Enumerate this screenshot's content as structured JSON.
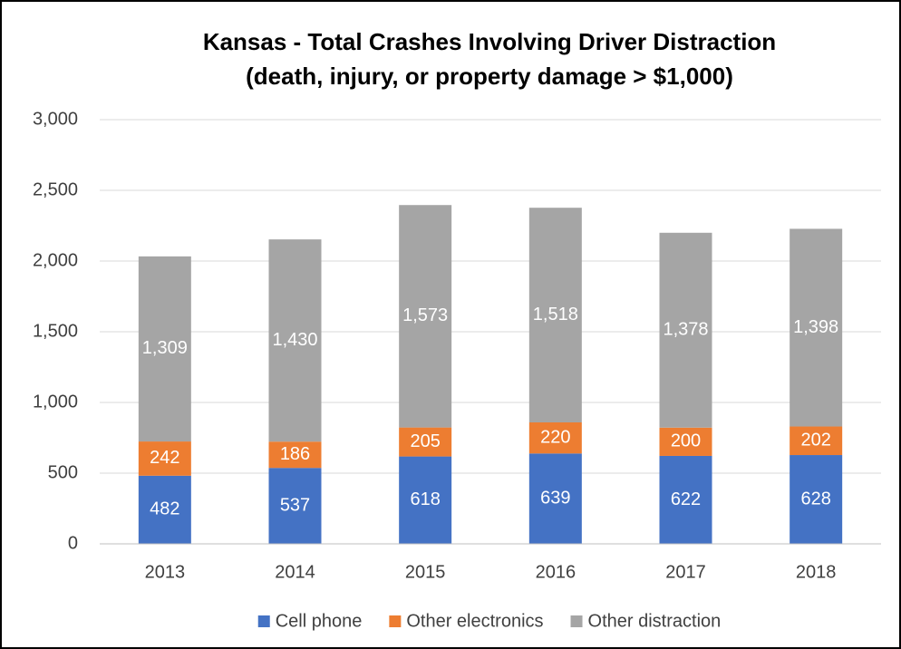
{
  "chart_data": {
    "type": "stacked_bar",
    "title": [
      "Kansas - Total Crashes Involving Driver Distraction",
      "(death, injury, or property damage > $1,000)"
    ],
    "categories": [
      "2013",
      "2014",
      "2015",
      "2016",
      "2017",
      "2018"
    ],
    "series": [
      {
        "name": "Cell phone",
        "color": "#4472c4",
        "values": [
          482,
          537,
          618,
          639,
          622,
          628
        ]
      },
      {
        "name": "Other electronics",
        "color": "#ed7d31",
        "values": [
          242,
          186,
          205,
          220,
          200,
          202
        ]
      },
      {
        "name": "Other distraction",
        "color": "#a5a5a5",
        "values": [
          1309,
          1430,
          1573,
          1518,
          1378,
          1398
        ],
        "value_labels": [
          "1,309",
          "1,430",
          "1,573",
          "1,518",
          "1,378",
          "1,398"
        ]
      }
    ],
    "ylim": [
      0,
      3000
    ],
    "yticks": [
      0,
      500,
      {
        "value": 1000,
        "label": "1,000"
      },
      {
        "value": 1500,
        "label": "1,500"
      },
      {
        "value": 2000,
        "label": "2,000"
      },
      {
        "value": 2500,
        "label": "2,500"
      },
      {
        "value": 3000,
        "label": "3,000"
      }
    ],
    "grid": true,
    "legend": "bottom"
  }
}
